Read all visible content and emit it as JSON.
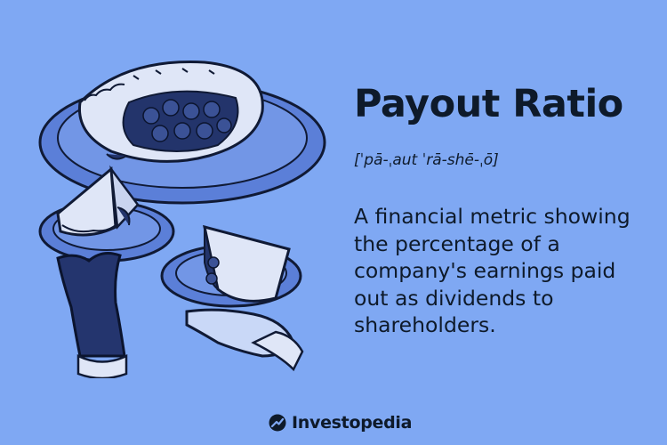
{
  "term": "Payout Ratio",
  "pronunciation": "[ˈpā-ˌaut ˈrā-shē-ˌō]",
  "definition": "A financial metric showing the percentage of a company's earnings paid out as dividends to shareholders.",
  "brand": "Investopedia",
  "colors": {
    "background": "#7fa8f3",
    "text": "#0e1a2a",
    "plate": "#5b7fd8",
    "pie_crust": "#dfe6f7",
    "filling": "#23346b"
  }
}
